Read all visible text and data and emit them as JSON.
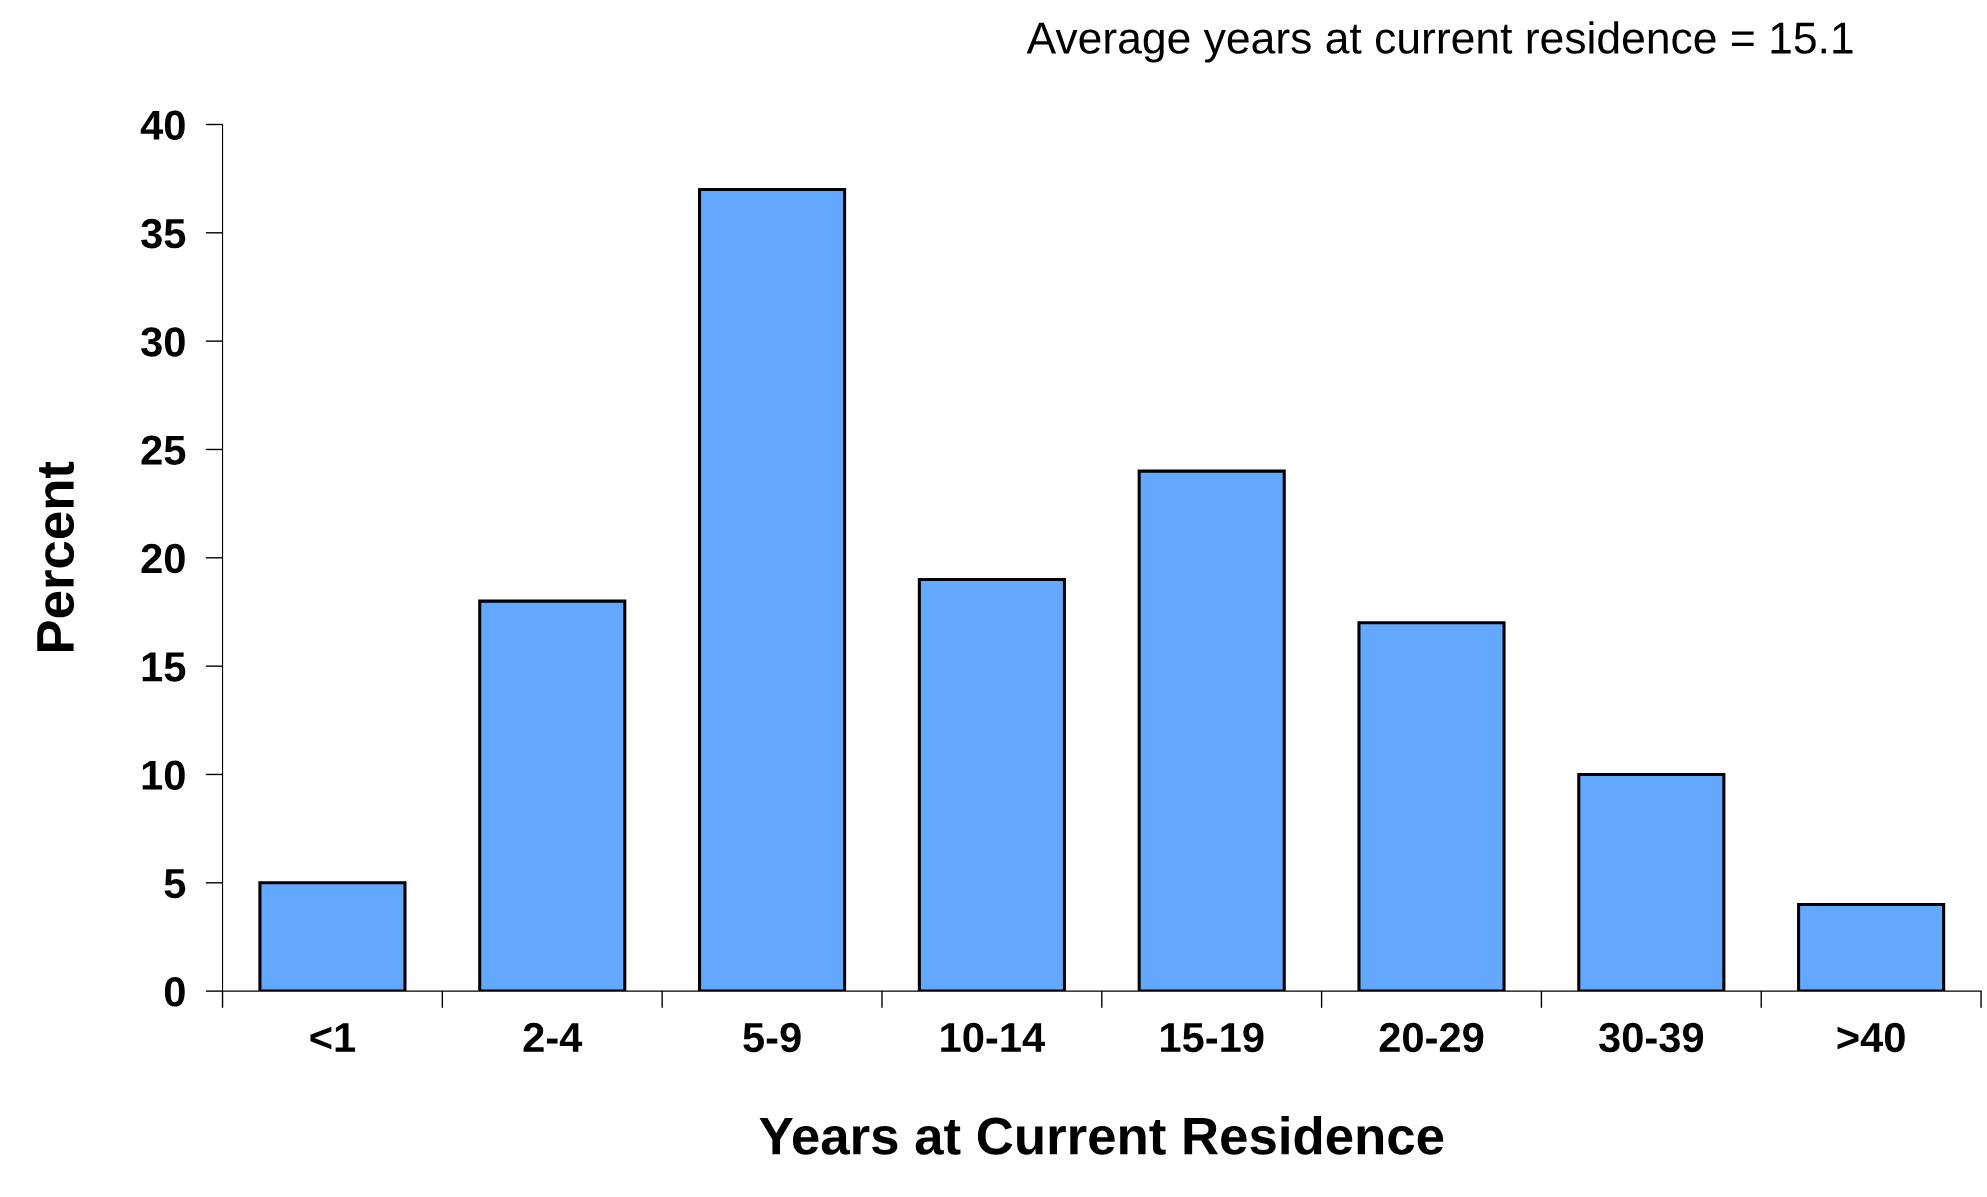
{
  "chart_data": {
    "type": "bar",
    "annotations": [
      "Average years at current residence = 15.1"
    ],
    "xlabel": "Years at Current Residence",
    "ylabel": "Percent",
    "categories": [
      "<1",
      "2-4",
      "5-9",
      "10-14",
      "15-19",
      "20-29",
      "30-39",
      ">40"
    ],
    "values": [
      5,
      18,
      37,
      19,
      24,
      17,
      10,
      4
    ],
    "color": "#63a8ff",
    "ylim": [
      0,
      40
    ],
    "yticks": [
      0,
      5,
      10,
      15,
      20,
      25,
      30,
      35,
      40
    ],
    "grid": false,
    "legend": false
  }
}
